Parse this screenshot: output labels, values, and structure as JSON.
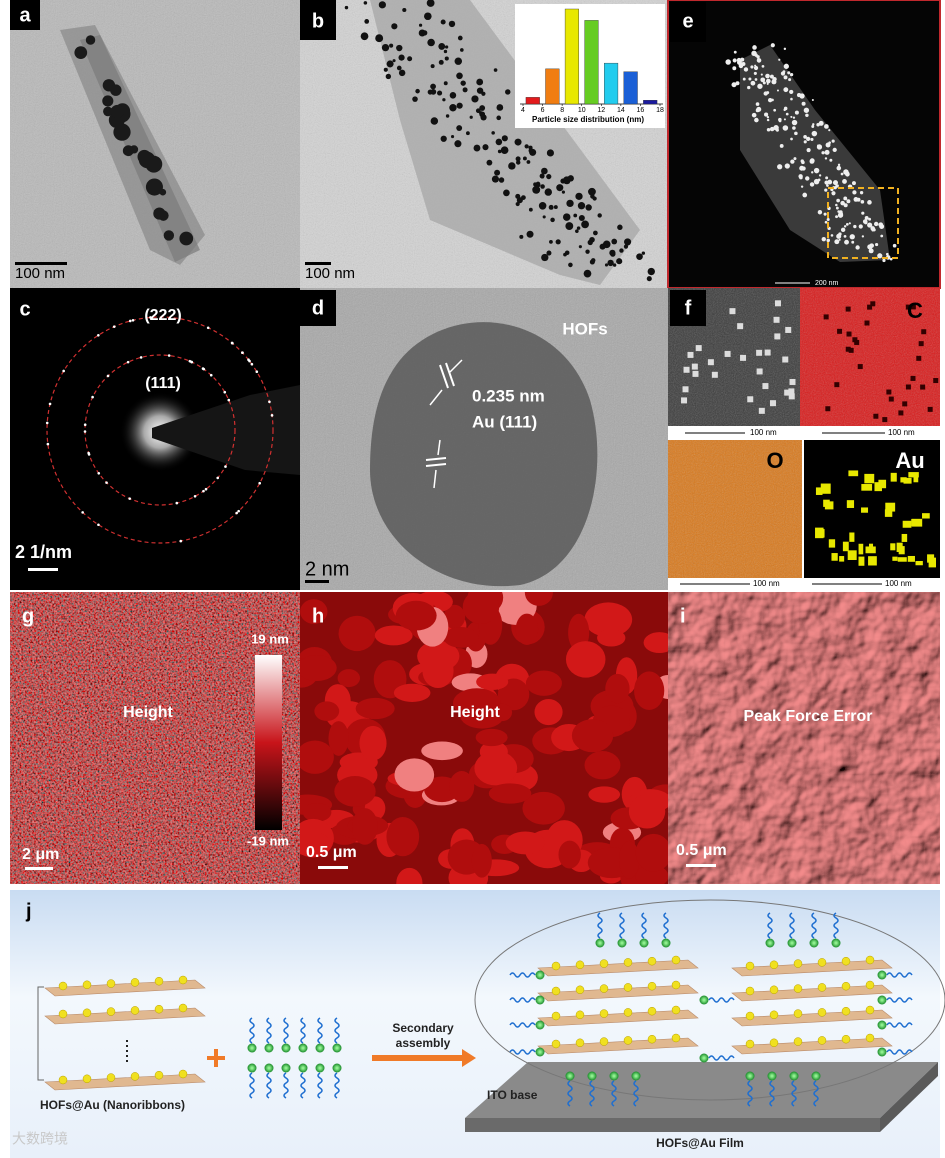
{
  "panels": {
    "a": {
      "label": "a",
      "scale_bar": "100 nm"
    },
    "b": {
      "label": "b",
      "scale_bar": "100 nm",
      "inset": {
        "type": "bar",
        "xlabel": "Particle size distribution (nm)",
        "bins": [
          4,
          6,
          8,
          10,
          12,
          14,
          16,
          18
        ],
        "xticks": [
          4,
          6,
          8,
          10,
          12,
          14,
          16,
          18
        ],
        "values": [
          7,
          37,
          100,
          88,
          43,
          34,
          4
        ],
        "colors": [
          "#e31a1c",
          "#f07d12",
          "#e8e800",
          "#66cc22",
          "#22ccee",
          "#1a5fd6",
          "#1a1aa0"
        ]
      }
    },
    "e": {
      "label": "e",
      "scale_bar": "200 nm"
    },
    "c": {
      "label": "c",
      "ring_outer": "(222)",
      "ring_inner": "(111)",
      "scale_bar": "2 1/nm"
    },
    "d": {
      "label": "d",
      "annotation": "HOFs",
      "spacing": "0.235 nm",
      "plane": "Au (111)",
      "scale_bar": "2 nm"
    },
    "f": {
      "label": "f",
      "maps": [
        "C",
        "O",
        "Au"
      ],
      "scale_bars": [
        "100 nm",
        "100 nm",
        "100 nm",
        "100 nm"
      ]
    },
    "g": {
      "label": "g",
      "mode": "Height",
      "colorbar_max": "19 nm",
      "colorbar_min": "-19 nm",
      "scale_bar": "2 μm"
    },
    "h": {
      "label": "h",
      "mode": "Height",
      "scale_bar": "0.5 μm"
    },
    "i": {
      "label": "i",
      "mode": "Peak Force Error",
      "scale_bar": "0.5 μm"
    },
    "j": {
      "label": "j",
      "arrow_label": [
        "Secondary",
        "assembly"
      ],
      "substrate": "ITO base",
      "left_caption": "HOFs@Au (Nanoribbons)",
      "right_caption": "HOFs@Au Film"
    }
  },
  "watermark": "大数跨境"
}
